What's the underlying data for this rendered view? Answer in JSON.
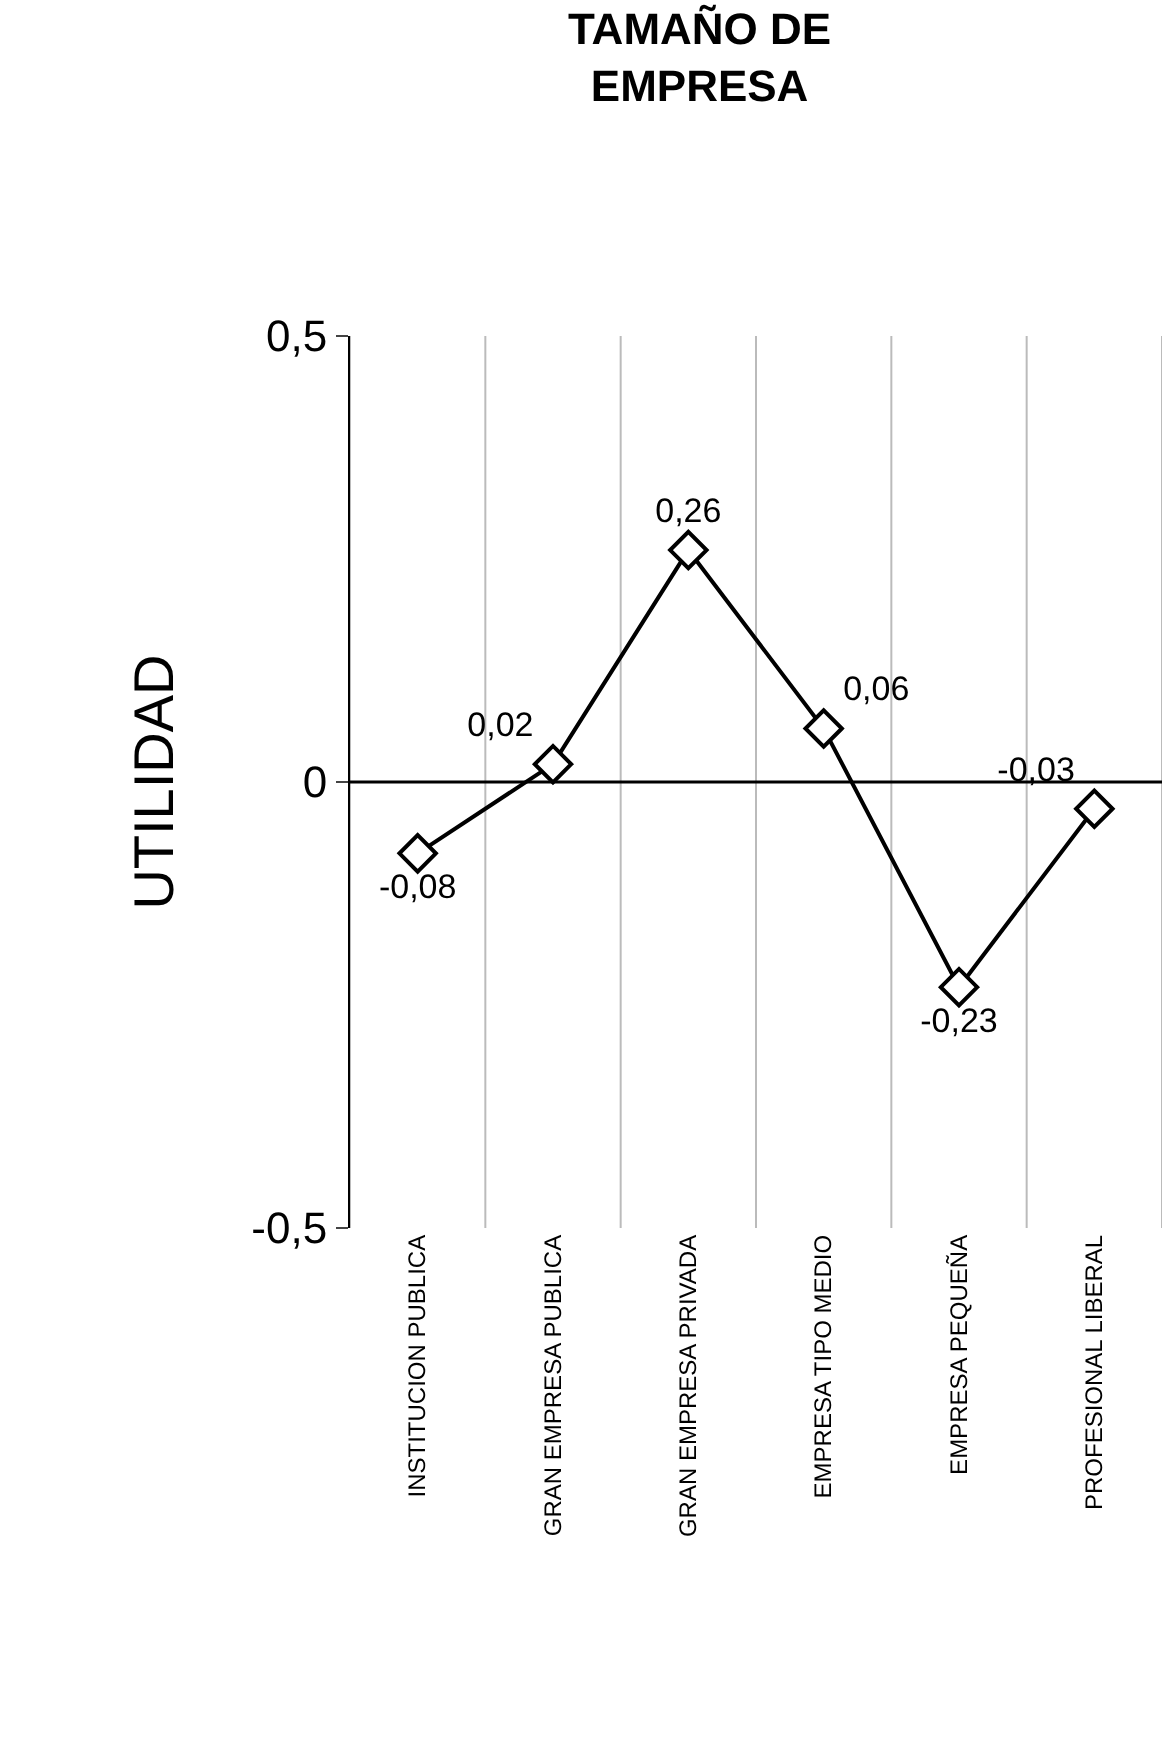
{
  "chart_data": {
    "type": "line",
    "title": "TAMAÑO DE EMPRESA",
    "ylabel": "UTILIDAD",
    "categories": [
      "INSTITUCION PUBLICA",
      "GRAN EMPRESA PUBLICA",
      "GRAN EMPRESA PRIVADA",
      "EMPRESA TIPO MEDIO",
      "EMPRESA PEQUEÑA",
      "PROFESIONAL LIBERAL"
    ],
    "values": [
      -0.08,
      0.02,
      0.26,
      0.06,
      -0.23,
      -0.03
    ],
    "value_labels": [
      "-0,08",
      "0,02",
      "0,26",
      "0,06",
      "-0,23",
      "-0,03"
    ],
    "color": "#000000",
    "marker": "diamond",
    "line_style": "solid",
    "ylim": [
      -0.5,
      0.5
    ],
    "yticks": [
      {
        "value": -0.5,
        "label": "-0,5"
      },
      {
        "value": 0,
        "label": "0"
      },
      {
        "value": 0.5,
        "label": "0,5"
      }
    ],
    "ref_lines": [
      {
        "axis": "y",
        "value": 0
      }
    ],
    "grid": "x"
  }
}
